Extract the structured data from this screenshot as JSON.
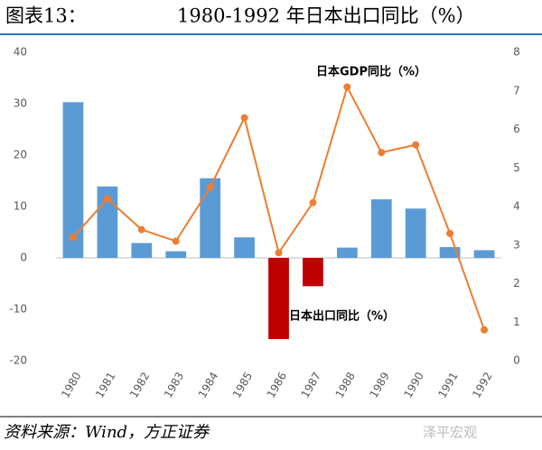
{
  "chart_data": {
    "type": "bar",
    "figure_label": "图表13：",
    "title": "1980-1992 年日本出口同比（%）",
    "categories": [
      "1980",
      "1981",
      "1982",
      "1983",
      "1984",
      "1985",
      "1986",
      "1987",
      "1988",
      "1989",
      "1990",
      "1991",
      "1992"
    ],
    "series": [
      {
        "name": "日本出口同比（%）",
        "type": "bar",
        "color": "#5b9bd5",
        "negative_color": "#c00000",
        "values": [
          30.3,
          13.9,
          2.9,
          1.3,
          15.5,
          4.0,
          -15.8,
          -5.5,
          2.0,
          11.4,
          9.6,
          2.1,
          1.5
        ]
      },
      {
        "name": "日本GDP同比（%）",
        "type": "line",
        "axis": "y2",
        "color": "#ed7d31",
        "values": [
          3.2,
          4.2,
          3.4,
          3.1,
          4.5,
          6.3,
          2.8,
          4.1,
          7.1,
          5.4,
          5.6,
          3.3,
          0.8
        ]
      }
    ],
    "ylim": [
      -20,
      40
    ],
    "yticks": [
      -20,
      -10,
      0,
      10,
      20,
      30,
      40
    ],
    "y2lim": [
      0,
      8
    ],
    "y2ticks": [
      0,
      1,
      2,
      3,
      4,
      5,
      6,
      7,
      8
    ],
    "grid": false,
    "source": "资料来源：Wind，方正证券",
    "watermark": "泽平宏观"
  }
}
